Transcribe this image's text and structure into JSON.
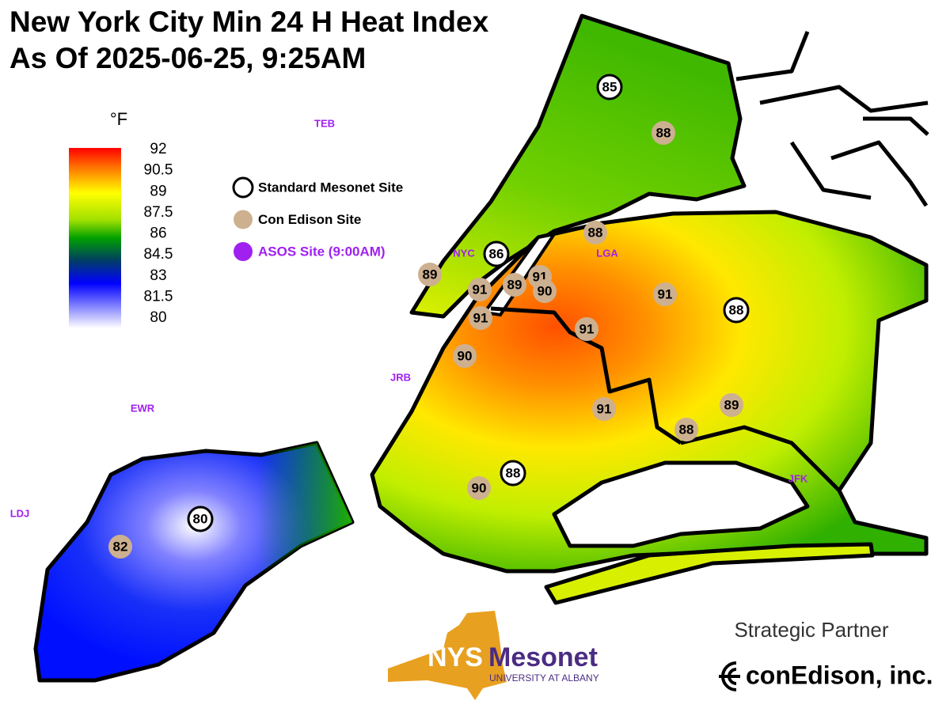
{
  "title": {
    "line1": "New York City Min 24 H Heat Index",
    "line2": "As Of 2025-06-25,  9:25AM"
  },
  "colorbar": {
    "unit": "°F",
    "ticks": [
      92,
      90.5,
      89,
      87.5,
      86,
      84.5,
      83,
      81.5,
      80
    ]
  },
  "legend": [
    {
      "label": "Standard Mesonet Site",
      "type": "standard"
    },
    {
      "label": "Con Edison Site",
      "type": "conedison"
    },
    {
      "label": "ASOS Site (9:00AM)",
      "type": "asos"
    }
  ],
  "sites": [
    {
      "value": 85,
      "type": "standard"
    },
    {
      "value": 88,
      "type": "conedison"
    },
    {
      "value": 88,
      "type": "conedison"
    },
    {
      "value": 86,
      "type": "standard"
    },
    {
      "value": 89,
      "type": "conedison"
    },
    {
      "value": 91,
      "type": "conedison"
    },
    {
      "value": 89,
      "type": "conedison"
    },
    {
      "value": 91,
      "type": "conedison"
    },
    {
      "value": 90,
      "type": "conedison"
    },
    {
      "value": 91,
      "type": "conedison"
    },
    {
      "value": 88,
      "type": "standard"
    },
    {
      "value": 91,
      "type": "conedison"
    },
    {
      "value": 91,
      "type": "conedison"
    },
    {
      "value": 90,
      "type": "conedison"
    },
    {
      "value": 91,
      "type": "conedison"
    },
    {
      "value": 89,
      "type": "conedison"
    },
    {
      "value": 88,
      "type": "conedison"
    },
    {
      "value": 88,
      "type": "standard"
    },
    {
      "value": 90,
      "type": "conedison"
    },
    {
      "value": 80,
      "type": "standard"
    },
    {
      "value": 82,
      "type": "conedison"
    }
  ],
  "asos": [
    "TEB",
    "NYC",
    "LGA",
    "JRB",
    "EWR",
    "LDJ",
    "JFK"
  ],
  "branding": {
    "nys": "NYS",
    "mesonet": "Mesonet",
    "university": "UNIVERSITY AT ALBANY",
    "partner_label": "Strategic Partner",
    "partner": "conEdison, inc."
  }
}
